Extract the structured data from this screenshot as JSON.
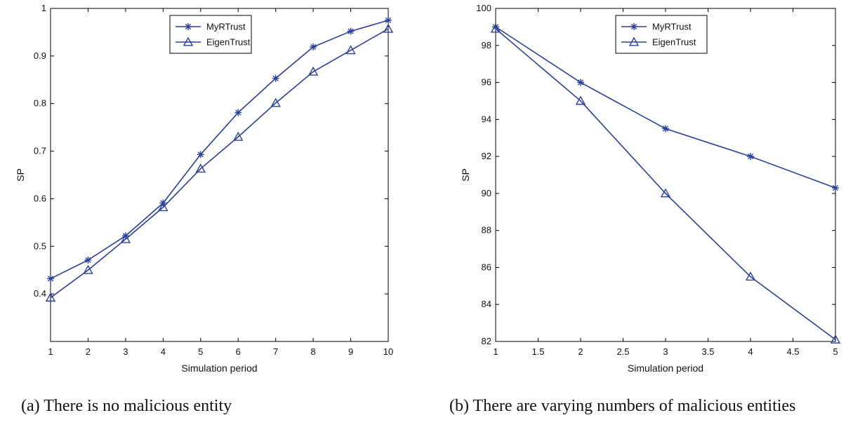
{
  "chart_data": [
    {
      "type": "line",
      "title": "",
      "caption": "(a) There is no malicious entity",
      "xlabel": "Simulation period",
      "ylabel": "SP",
      "xlim": [
        1,
        10
      ],
      "ylim": [
        0.3,
        1.0
      ],
      "xticks": [
        1,
        2,
        3,
        4,
        5,
        6,
        7,
        8,
        9,
        10
      ],
      "xtick_labels": [
        "1",
        "2",
        "3",
        "4",
        "5",
        "6",
        "7",
        "8",
        "9",
        "10"
      ],
      "yticks": [
        0.4,
        0.5,
        0.6,
        0.7,
        0.8,
        0.9,
        1.0
      ],
      "ytick_labels": [
        "0.4",
        "0.5",
        "0.6",
        "0.7",
        "0.8",
        "0.9",
        "1"
      ],
      "grid": false,
      "legend_position": "top-center",
      "x": [
        1,
        2,
        3,
        4,
        5,
        6,
        7,
        8,
        9,
        10
      ],
      "series": [
        {
          "name": "MyRTrust",
          "marker": "star",
          "values": [
            0.432,
            0.471,
            0.522,
            0.591,
            0.693,
            0.781,
            0.853,
            0.919,
            0.952,
            0.975
          ]
        },
        {
          "name": "EigenTrust",
          "marker": "triangle",
          "values": [
            0.392,
            0.45,
            0.515,
            0.582,
            0.663,
            0.73,
            0.801,
            0.867,
            0.912,
            0.957
          ]
        }
      ]
    },
    {
      "type": "line",
      "title": "",
      "caption": "(b) There are varying numbers of malicious entities",
      "xlabel": "Simulation period",
      "ylabel": "SP",
      "xlim": [
        1,
        5
      ],
      "ylim": [
        82,
        100
      ],
      "xticks": [
        1,
        1.5,
        2,
        2.5,
        3,
        3.5,
        4,
        4.5,
        5
      ],
      "xtick_labels": [
        "1",
        "1.5",
        "2",
        "2.5",
        "3",
        "3.5",
        "4",
        "4.5",
        "5"
      ],
      "yticks": [
        82,
        84,
        86,
        88,
        90,
        92,
        94,
        96,
        98,
        100
      ],
      "ytick_labels": [
        "82",
        "84",
        "86",
        "88",
        "90",
        "92",
        "94",
        "96",
        "98",
        "100"
      ],
      "grid": false,
      "legend_position": "top-center",
      "x": [
        1,
        2,
        3,
        4,
        5
      ],
      "series": [
        {
          "name": "MyRTrust",
          "marker": "star",
          "values": [
            99.0,
            96.0,
            93.5,
            92.0,
            90.3
          ]
        },
        {
          "name": "EigenTrust",
          "marker": "triangle",
          "values": [
            98.9,
            95.0,
            90.0,
            85.5,
            82.1
          ]
        }
      ]
    }
  ],
  "colors": {
    "series": "#2b3f9e",
    "axis": "#000000"
  }
}
